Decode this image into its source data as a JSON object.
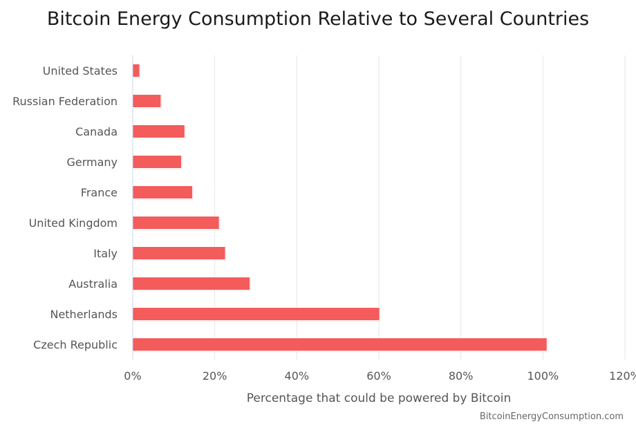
{
  "chart_data": {
    "type": "bar",
    "orientation": "horizontal",
    "title": "Bitcoin Energy Consumption Relative to Several Countries",
    "xlabel": "Percentage that could be powered by Bitcoin",
    "ylabel": "",
    "categories": [
      "United States",
      "Russian Federation",
      "Canada",
      "Germany",
      "France",
      "United Kingdom",
      "Italy",
      "Australia",
      "Netherlands",
      "Czech Republic"
    ],
    "values": [
      1.7,
      6.9,
      12.7,
      11.9,
      14.6,
      21.1,
      22.6,
      28.6,
      60.2,
      101.0
    ],
    "xlim": [
      0,
      120
    ],
    "xticks": [
      0,
      20,
      40,
      60,
      80,
      100,
      120
    ],
    "tick_suffix": "%",
    "grid": true,
    "legend": "none",
    "bar_color": "#f45b5b"
  },
  "credit": "BitcoinEnergyConsumption.com"
}
